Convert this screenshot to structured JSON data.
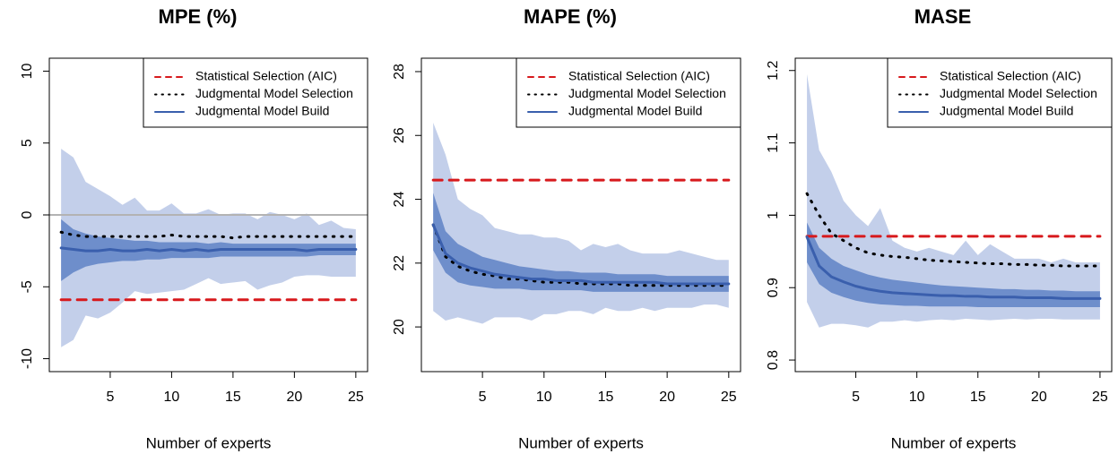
{
  "chart_data": [
    {
      "type": "line",
      "title": "MPE (%)",
      "x_label": "Number of experts",
      "x": [
        1,
        2,
        3,
        4,
        5,
        6,
        7,
        8,
        9,
        10,
        11,
        12,
        13,
        14,
        15,
        16,
        17,
        18,
        19,
        20,
        21,
        22,
        23,
        24,
        25
      ],
      "xlim": [
        0.04,
        25.96
      ],
      "xticks": [
        5,
        10,
        15,
        20,
        25
      ],
      "ylim": [
        -10.9,
        10.9
      ],
      "yticks": [
        -10,
        -5,
        0,
        5,
        10
      ],
      "hline": 0,
      "hline_color": "#b3b3b3",
      "legend": "topright",
      "bands": [
        {
          "color": "#c3cfea",
          "upper": [
            4.6,
            4.0,
            2.3,
            1.8,
            1.3,
            0.7,
            1.2,
            0.3,
            0.3,
            0.8,
            0.1,
            0.1,
            0.4,
            0.0,
            0.1,
            0.1,
            -0.3,
            0.2,
            0.0,
            -0.3,
            0.1,
            -0.7,
            -0.4,
            -0.9,
            -1.0
          ],
          "lower": [
            -9.2,
            -8.7,
            -7.0,
            -7.2,
            -6.8,
            -6.1,
            -5.3,
            -5.5,
            -5.4,
            -5.3,
            -5.2,
            -4.8,
            -4.4,
            -4.8,
            -4.7,
            -4.6,
            -5.2,
            -4.9,
            -4.7,
            -4.3,
            -4.2,
            -4.2,
            -4.3,
            -4.3,
            -4.3
          ]
        },
        {
          "color": "#6e8ecb",
          "upper": [
            -0.3,
            -1.0,
            -1.3,
            -1.5,
            -1.6,
            -1.7,
            -1.8,
            -1.8,
            -1.9,
            -1.9,
            -1.9,
            -1.9,
            -2.0,
            -1.9,
            -2.0,
            -2.0,
            -2.0,
            -2.0,
            -2.0,
            -2.0,
            -2.0,
            -2.0,
            -2.0,
            -2.0,
            -2.0
          ],
          "lower": [
            -4.6,
            -4.0,
            -3.6,
            -3.4,
            -3.3,
            -3.2,
            -3.2,
            -3.1,
            -3.1,
            -3.0,
            -3.0,
            -3.0,
            -3.0,
            -2.9,
            -2.9,
            -2.9,
            -2.9,
            -2.9,
            -2.9,
            -2.9,
            -2.9,
            -2.8,
            -2.8,
            -2.8,
            -2.8
          ]
        }
      ],
      "series": [
        {
          "name": "Statistical Selection (AIC)",
          "color": "#d7191c",
          "style": "dashed",
          "values": [
            -5.9,
            -5.9,
            -5.9,
            -5.9,
            -5.9,
            -5.9,
            -5.9,
            -5.9,
            -5.9,
            -5.9,
            -5.9,
            -5.9,
            -5.9,
            -5.9,
            -5.9,
            -5.9,
            -5.9,
            -5.9,
            -5.9,
            -5.9,
            -5.9,
            -5.9,
            -5.9,
            -5.9,
            -5.9
          ]
        },
        {
          "name": "Judgmental Model Selection",
          "color": "#000000",
          "style": "dotted",
          "values": [
            -1.2,
            -1.4,
            -1.5,
            -1.5,
            -1.5,
            -1.5,
            -1.5,
            -1.5,
            -1.5,
            -1.4,
            -1.5,
            -1.5,
            -1.5,
            -1.5,
            -1.6,
            -1.5,
            -1.5,
            -1.5,
            -1.5,
            -1.5,
            -1.5,
            -1.5,
            -1.5,
            -1.5,
            -1.5
          ]
        },
        {
          "name": "Judgmental Model Build",
          "color": "#3a5fad",
          "style": "solid",
          "values": [
            -2.3,
            -2.4,
            -2.5,
            -2.5,
            -2.4,
            -2.5,
            -2.5,
            -2.4,
            -2.5,
            -2.4,
            -2.5,
            -2.4,
            -2.5,
            -2.4,
            -2.4,
            -2.4,
            -2.4,
            -2.4,
            -2.4,
            -2.4,
            -2.5,
            -2.4,
            -2.4,
            -2.4,
            -2.4
          ]
        }
      ]
    },
    {
      "type": "line",
      "title": "MAPE (%)",
      "x_label": "Number of experts",
      "x": [
        1,
        2,
        3,
        4,
        5,
        6,
        7,
        8,
        9,
        10,
        11,
        12,
        13,
        14,
        15,
        16,
        17,
        18,
        19,
        20,
        21,
        22,
        23,
        24,
        25
      ],
      "xlim": [
        0.04,
        25.96
      ],
      "xticks": [
        5,
        10,
        15,
        20,
        25
      ],
      "ylim": [
        18.6,
        28.42
      ],
      "yticks": [
        20,
        22,
        24,
        26,
        28
      ],
      "legend": "topright",
      "bands": [
        {
          "color": "#c3cfea",
          "upper": [
            26.4,
            25.4,
            24.0,
            23.7,
            23.5,
            23.1,
            23.0,
            22.9,
            22.9,
            22.8,
            22.8,
            22.7,
            22.4,
            22.6,
            22.5,
            22.6,
            22.4,
            22.3,
            22.3,
            22.3,
            22.4,
            22.3,
            22.2,
            22.1,
            22.1
          ],
          "lower": [
            20.5,
            20.2,
            20.3,
            20.2,
            20.1,
            20.3,
            20.3,
            20.3,
            20.2,
            20.4,
            20.4,
            20.5,
            20.5,
            20.4,
            20.6,
            20.5,
            20.5,
            20.6,
            20.5,
            20.6,
            20.6,
            20.6,
            20.7,
            20.7,
            20.6
          ]
        },
        {
          "color": "#6e8ecb",
          "upper": [
            24.2,
            23.0,
            22.6,
            22.4,
            22.2,
            22.1,
            22.0,
            21.9,
            21.85,
            21.8,
            21.75,
            21.75,
            21.7,
            21.7,
            21.7,
            21.65,
            21.65,
            21.65,
            21.65,
            21.6,
            21.6,
            21.6,
            21.6,
            21.6,
            21.6
          ],
          "lower": [
            22.4,
            21.7,
            21.4,
            21.3,
            21.25,
            21.2,
            21.2,
            21.2,
            21.15,
            21.15,
            21.15,
            21.15,
            21.15,
            21.1,
            21.1,
            21.1,
            21.1,
            21.1,
            21.1,
            21.1,
            21.1,
            21.1,
            21.1,
            21.1,
            21.1
          ]
        }
      ],
      "series": [
        {
          "name": "Statistical Selection (AIC)",
          "color": "#d7191c",
          "style": "dashed",
          "values": [
            24.6,
            24.6,
            24.6,
            24.6,
            24.6,
            24.6,
            24.6,
            24.6,
            24.6,
            24.6,
            24.6,
            24.6,
            24.6,
            24.6,
            24.6,
            24.6,
            24.6,
            24.6,
            24.6,
            24.6,
            24.6,
            24.6,
            24.6,
            24.6,
            24.6
          ]
        },
        {
          "name": "Judgmental Model Selection",
          "color": "#000000",
          "style": "dotted",
          "values": [
            23.2,
            22.2,
            21.9,
            21.75,
            21.65,
            21.6,
            21.5,
            21.5,
            21.45,
            21.4,
            21.4,
            21.4,
            21.35,
            21.35,
            21.35,
            21.35,
            21.3,
            21.3,
            21.3,
            21.3,
            21.3,
            21.3,
            21.3,
            21.3,
            21.3
          ]
        },
        {
          "name": "Judgmental Model Build",
          "color": "#3a5fad",
          "style": "solid",
          "values": [
            23.2,
            22.3,
            22.0,
            21.85,
            21.75,
            21.65,
            21.6,
            21.55,
            21.5,
            21.5,
            21.45,
            21.45,
            21.45,
            21.4,
            21.4,
            21.4,
            21.4,
            21.4,
            21.4,
            21.35,
            21.35,
            21.35,
            21.35,
            21.35,
            21.35
          ]
        }
      ]
    },
    {
      "type": "line",
      "title": "MASE",
      "x_label": "Number of experts",
      "x": [
        1,
        2,
        3,
        4,
        5,
        6,
        7,
        8,
        9,
        10,
        11,
        12,
        13,
        14,
        15,
        16,
        17,
        18,
        19,
        20,
        21,
        22,
        23,
        24,
        25
      ],
      "xlim": [
        0.04,
        25.96
      ],
      "xticks": [
        5,
        10,
        15,
        20,
        25
      ],
      "ylim": [
        0.784,
        1.217
      ],
      "yticks": [
        0.8,
        0.9,
        1.0,
        1.1,
        1.2
      ],
      "legend": "topright",
      "bands": [
        {
          "color": "#c3cfea",
          "upper": [
            1.195,
            1.09,
            1.06,
            1.02,
            1.0,
            0.985,
            1.01,
            0.965,
            0.955,
            0.95,
            0.955,
            0.95,
            0.945,
            0.965,
            0.945,
            0.96,
            0.95,
            0.94,
            0.94,
            0.94,
            0.935,
            0.94,
            0.935,
            0.935,
            0.935
          ],
          "lower": [
            0.88,
            0.845,
            0.85,
            0.85,
            0.848,
            0.845,
            0.853,
            0.853,
            0.855,
            0.853,
            0.855,
            0.856,
            0.855,
            0.857,
            0.856,
            0.855,
            0.856,
            0.857,
            0.856,
            0.857,
            0.857,
            0.856,
            0.856,
            0.856,
            0.856
          ]
        },
        {
          "color": "#6e8ecb",
          "upper": [
            0.99,
            0.955,
            0.94,
            0.93,
            0.924,
            0.918,
            0.914,
            0.911,
            0.909,
            0.907,
            0.905,
            0.903,
            0.902,
            0.901,
            0.9,
            0.899,
            0.898,
            0.898,
            0.897,
            0.897,
            0.896,
            0.896,
            0.895,
            0.895,
            0.895
          ],
          "lower": [
            0.935,
            0.905,
            0.893,
            0.887,
            0.882,
            0.879,
            0.877,
            0.876,
            0.875,
            0.875,
            0.874,
            0.874,
            0.874,
            0.874,
            0.873,
            0.873,
            0.873,
            0.873,
            0.873,
            0.873,
            0.873,
            0.873,
            0.873,
            0.873,
            0.873
          ]
        }
      ],
      "series": [
        {
          "name": "Statistical Selection (AIC)",
          "color": "#d7191c",
          "style": "dashed",
          "values": [
            0.971,
            0.971,
            0.971,
            0.971,
            0.971,
            0.971,
            0.971,
            0.971,
            0.971,
            0.971,
            0.971,
            0.971,
            0.971,
            0.971,
            0.971,
            0.971,
            0.971,
            0.971,
            0.971,
            0.971,
            0.971,
            0.971,
            0.971,
            0.971,
            0.971
          ]
        },
        {
          "name": "Judgmental Model Selection",
          "color": "#000000",
          "style": "dotted",
          "values": [
            1.03,
            1.0,
            0.975,
            0.965,
            0.955,
            0.948,
            0.945,
            0.943,
            0.942,
            0.94,
            0.938,
            0.937,
            0.936,
            0.935,
            0.934,
            0.933,
            0.933,
            0.932,
            0.932,
            0.931,
            0.931,
            0.93,
            0.93,
            0.93,
            0.93
          ]
        },
        {
          "name": "Judgmental Model Build",
          "color": "#3a5fad",
          "style": "solid",
          "values": [
            0.97,
            0.93,
            0.915,
            0.908,
            0.902,
            0.898,
            0.895,
            0.893,
            0.892,
            0.891,
            0.89,
            0.889,
            0.889,
            0.888,
            0.888,
            0.887,
            0.887,
            0.887,
            0.886,
            0.886,
            0.886,
            0.885,
            0.885,
            0.885,
            0.885
          ]
        }
      ]
    }
  ]
}
